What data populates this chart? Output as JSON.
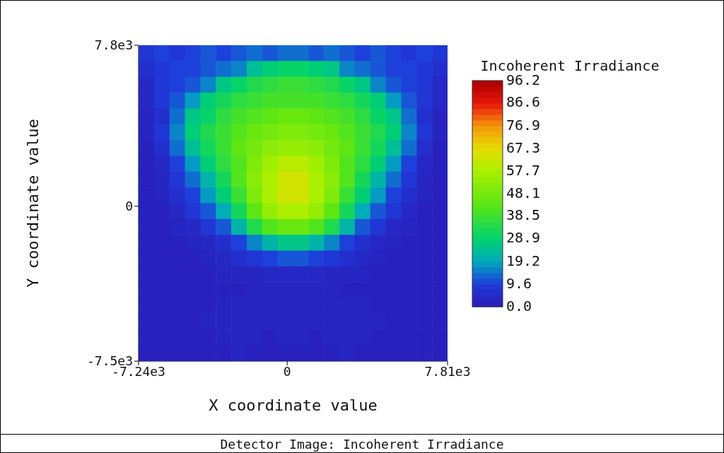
{
  "chart_data": {
    "type": "heatmap",
    "xlabel": "X coordinate value",
    "ylabel": "Y coordinate value",
    "clabel": "Incoherent Irradiance",
    "annotations": [
      "Detector Image: Incoherent Irradiance"
    ],
    "x": [
      -6864,
      -6111,
      -5359,
      -4606,
      -3854,
      -3101,
      -2349,
      -1596,
      -844,
      -91,
      661,
      1414,
      2166,
      2919,
      3671,
      4424,
      5176,
      5929,
      6681,
      7434
    ],
    "y": [
      7418,
      6653,
      5888,
      5123,
      4358,
      3593,
      2828,
      2063,
      1298,
      533,
      -233,
      -998,
      -1763,
      -2528,
      -3293,
      -4058,
      -4823,
      -5588,
      -6353,
      -7118
    ],
    "xlim": [
      -7240,
      7810
    ],
    "xticks": [
      {
        "value": -7240,
        "label": "-7.24e3"
      },
      0,
      {
        "value": 7810,
        "label": "7.81e3"
      }
    ],
    "ylim": [
      -7500,
      7800
    ],
    "yticks": [
      {
        "value": -7500,
        "label": "-7.5e3"
      },
      0,
      {
        "value": 7800,
        "label": "7.8e3"
      }
    ],
    "clim": [
      0,
      96.2
    ],
    "cticks": [
      {
        "value": 0,
        "label": "0.0"
      },
      9.6,
      19.2,
      28.9,
      38.5,
      48.1,
      57.7,
      67.3,
      76.9,
      86.6,
      96.2
    ],
    "cells": [
      [
        8,
        10,
        8,
        10,
        12,
        10,
        12,
        14,
        12,
        14,
        14,
        12,
        14,
        12,
        10,
        12,
        10,
        8,
        10,
        8
      ],
      [
        6,
        8,
        10,
        10,
        12,
        14,
        16,
        24,
        28,
        30,
        30,
        28,
        26,
        16,
        14,
        12,
        10,
        10,
        8,
        6
      ],
      [
        4,
        8,
        10,
        12,
        16,
        26,
        30,
        34,
        36,
        38,
        38,
        36,
        34,
        30,
        26,
        16,
        12,
        10,
        8,
        4
      ],
      [
        4,
        8,
        12,
        18,
        28,
        32,
        36,
        38,
        40,
        40,
        40,
        40,
        38,
        36,
        32,
        28,
        18,
        12,
        8,
        4
      ],
      [
        3,
        6,
        14,
        26,
        30,
        36,
        40,
        42,
        44,
        46,
        46,
        44,
        42,
        40,
        36,
        30,
        26,
        14,
        6,
        3
      ],
      [
        3,
        8,
        16,
        28,
        34,
        38,
        42,
        46,
        48,
        50,
        50,
        48,
        46,
        42,
        38,
        34,
        28,
        16,
        8,
        3
      ],
      [
        2,
        6,
        14,
        24,
        32,
        38,
        44,
        48,
        52,
        54,
        54,
        52,
        48,
        44,
        38,
        32,
        24,
        14,
        6,
        2
      ],
      [
        2,
        4,
        10,
        18,
        28,
        36,
        42,
        50,
        56,
        60,
        60,
        56,
        50,
        42,
        36,
        28,
        18,
        10,
        4,
        2
      ],
      [
        2,
        3,
        8,
        14,
        22,
        32,
        42,
        52,
        58,
        64,
        64,
        58,
        52,
        42,
        32,
        22,
        14,
        8,
        3,
        2
      ],
      [
        2,
        3,
        6,
        10,
        18,
        28,
        38,
        50,
        58,
        64,
        64,
        58,
        50,
        38,
        28,
        18,
        10,
        6,
        3,
        2
      ],
      [
        2,
        2,
        4,
        8,
        12,
        20,
        32,
        44,
        54,
        58,
        58,
        54,
        44,
        32,
        20,
        12,
        8,
        4,
        2,
        2
      ],
      [
        2,
        2,
        3,
        4,
        8,
        12,
        22,
        34,
        42,
        46,
        46,
        42,
        34,
        22,
        12,
        8,
        4,
        3,
        2,
        2
      ],
      [
        2,
        2,
        2,
        3,
        4,
        6,
        10,
        16,
        22,
        26,
        26,
        22,
        16,
        10,
        6,
        4,
        3,
        2,
        2,
        2
      ],
      [
        2,
        2,
        2,
        2,
        3,
        4,
        6,
        8,
        10,
        12,
        12,
        10,
        8,
        6,
        4,
        3,
        2,
        2,
        2,
        2
      ],
      [
        2,
        2,
        2,
        2,
        2,
        3,
        3,
        3,
        4,
        4,
        4,
        4,
        3,
        3,
        3,
        2,
        2,
        2,
        2,
        2
      ],
      [
        2,
        2,
        2,
        2,
        2,
        2,
        2,
        3,
        3,
        3,
        3,
        3,
        3,
        2,
        2,
        2,
        2,
        2,
        2,
        2
      ],
      [
        2,
        2,
        2,
        2,
        2,
        3,
        3,
        3,
        3,
        3,
        3,
        3,
        3,
        3,
        3,
        2,
        2,
        2,
        2,
        2
      ],
      [
        2,
        2,
        2,
        2,
        3,
        3,
        3,
        3,
        3,
        3,
        3,
        3,
        3,
        3,
        3,
        3,
        2,
        2,
        2,
        2
      ],
      [
        2,
        2,
        2,
        2,
        2,
        3,
        3,
        3,
        2,
        3,
        3,
        2,
        3,
        3,
        3,
        2,
        2,
        2,
        2,
        2
      ],
      [
        2,
        2,
        2,
        2,
        2,
        2,
        3,
        2,
        2,
        2,
        2,
        2,
        2,
        3,
        2,
        2,
        2,
        2,
        2,
        2
      ]
    ]
  }
}
